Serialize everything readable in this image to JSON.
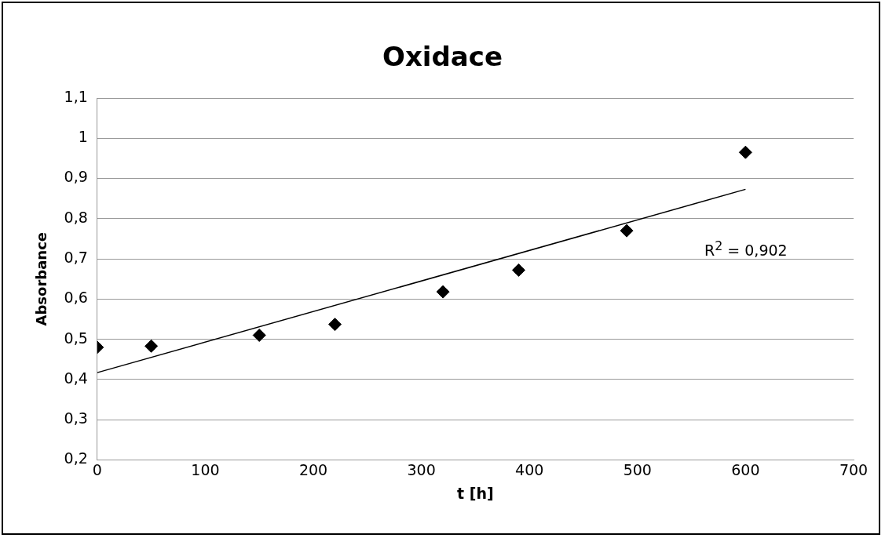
{
  "chart_data": {
    "type": "scatter",
    "title": "Oxidace",
    "xlabel": "t [h]",
    "ylabel": "Absorbance",
    "x": [
      0,
      50,
      150,
      220,
      320,
      390,
      490,
      600
    ],
    "series": [
      {
        "color": "#000000",
        "values": [
          0.48,
          0.483,
          0.51,
          0.537,
          0.618,
          0.672,
          0.77,
          0.965
        ],
        "marker": "diamond"
      },
      {
        "type": "line",
        "color": "#000000",
        "x": [
          0,
          600
        ],
        "values": [
          0.417,
          0.873
        ],
        "marker": "none",
        "line_style": "solid"
      }
    ],
    "annotations": [
      "R$^{2}$ = 0,902"
    ],
    "xlim": [
      0,
      700
    ],
    "xticks": [
      0,
      100,
      200,
      300,
      400,
      500,
      600,
      700
    ],
    "ylim": [
      0.2,
      1.1
    ],
    "yticks": [
      {
        "value": 0.2,
        "label": "0,2"
      },
      {
        "value": 0.3,
        "label": "0,3"
      },
      {
        "value": 0.4,
        "label": "0,4"
      },
      {
        "value": 0.5,
        "label": "0,5"
      },
      {
        "value": 0.6,
        "label": "0,6"
      },
      {
        "value": 0.7,
        "label": "0,7"
      },
      {
        "value": 0.8,
        "label": "0,8"
      },
      {
        "value": 0.9,
        "label": "0,9"
      },
      {
        "value": 1,
        "label": "1"
      },
      {
        "value": 1.1,
        "label": "1,1"
      }
    ],
    "grid": "y",
    "legend": false
  }
}
